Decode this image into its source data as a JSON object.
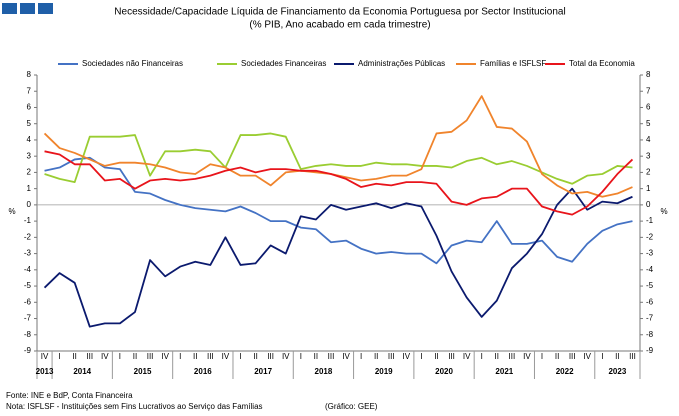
{
  "chart_data": {
    "type": "line",
    "title": "Necessidade/Capacidade Líquida de Financiamento da Economia Portuguesa por Sector Institucional",
    "subtitle": "(% PIB, Ano acabado em cada trimestre)",
    "y_axis_label": "%",
    "groups": [
      {
        "year": "2013",
        "quarters": [
          "IV"
        ]
      },
      {
        "year": "2014",
        "quarters": [
          "I",
          "II",
          "III",
          "IV"
        ]
      },
      {
        "year": "2015",
        "quarters": [
          "I",
          "II",
          "III",
          "IV"
        ]
      },
      {
        "year": "2016",
        "quarters": [
          "I",
          "II",
          "III",
          "IV"
        ]
      },
      {
        "year": "2017",
        "quarters": [
          "I",
          "II",
          "III",
          "IV"
        ]
      },
      {
        "year": "2018",
        "quarters": [
          "I",
          "II",
          "III",
          "IV"
        ]
      },
      {
        "year": "2019",
        "quarters": [
          "I",
          "II",
          "III",
          "IV"
        ]
      },
      {
        "year": "2020",
        "quarters": [
          "I",
          "II",
          "III",
          "IV"
        ]
      },
      {
        "year": "2021",
        "quarters": [
          "I",
          "II",
          "III",
          "IV"
        ]
      },
      {
        "year": "2022",
        "quarters": [
          "I",
          "II",
          "III",
          "IV"
        ]
      },
      {
        "year": "2023",
        "quarters": [
          "I",
          "II",
          "III"
        ]
      }
    ],
    "series": [
      {
        "name": "Sociedades não Financeiras",
        "color": "#4472c4",
        "values": [
          2.1,
          2.3,
          2.8,
          2.9,
          2.3,
          2.2,
          0.8,
          0.7,
          0.3,
          0.0,
          -0.2,
          -0.3,
          -0.4,
          -0.1,
          -0.5,
          -1.0,
          -1.0,
          -1.4,
          -1.5,
          -2.3,
          -2.2,
          -2.7,
          -3.0,
          -2.9,
          -3.0,
          -3.0,
          -3.6,
          -2.5,
          -2.2,
          -2.3,
          -1.0,
          -2.4,
          -2.4,
          -2.2,
          -3.2,
          -3.5,
          -2.4,
          -1.6,
          -1.2,
          -1.0
        ]
      },
      {
        "name": "Sociedades Financeiras",
        "color": "#9acd32",
        "values": [
          1.9,
          1.6,
          1.4,
          4.2,
          4.2,
          4.2,
          4.3,
          1.8,
          3.3,
          3.3,
          3.4,
          3.3,
          2.3,
          4.3,
          4.3,
          4.4,
          4.2,
          2.2,
          2.4,
          2.5,
          2.4,
          2.4,
          2.6,
          2.5,
          2.5,
          2.4,
          2.4,
          2.3,
          2.7,
          2.9,
          2.5,
          2.7,
          2.4,
          2.0,
          1.6,
          1.3,
          1.8,
          1.9,
          2.4,
          2.3
        ]
      },
      {
        "name": "Administrações Públicas",
        "color": "#0b1a6e",
        "values": [
          -5.1,
          -4.2,
          -4.8,
          -7.5,
          -7.3,
          -7.3,
          -6.6,
          -3.4,
          -4.4,
          -3.8,
          -3.5,
          -3.7,
          -2.0,
          -3.7,
          -3.6,
          -2.5,
          -3.0,
          -0.7,
          -0.9,
          0.0,
          -0.3,
          -0.1,
          0.1,
          -0.2,
          0.1,
          -0.1,
          -1.9,
          -4.1,
          -5.7,
          -6.9,
          -5.9,
          -3.9,
          -3.0,
          -1.8,
          0.0,
          1.0,
          -0.3,
          0.2,
          0.1,
          0.5
        ]
      },
      {
        "name": "Famílias e ISFLSF",
        "color": "#f0842c",
        "values": [
          4.4,
          3.5,
          3.2,
          2.8,
          2.4,
          2.6,
          2.6,
          2.5,
          2.3,
          2.0,
          1.9,
          2.5,
          2.3,
          1.8,
          1.8,
          1.2,
          2.0,
          2.1,
          2.0,
          1.9,
          1.7,
          1.5,
          1.6,
          1.8,
          1.8,
          2.2,
          4.4,
          4.5,
          5.2,
          6.7,
          4.8,
          4.7,
          3.9,
          1.9,
          1.2,
          0.7,
          0.8,
          0.5,
          0.7,
          1.1
        ]
      },
      {
        "name": "Total da Economia",
        "color": "#e8141b",
        "values": [
          3.3,
          3.1,
          2.5,
          2.5,
          1.5,
          1.6,
          1.0,
          1.5,
          1.6,
          1.5,
          1.6,
          1.8,
          2.1,
          2.3,
          2.0,
          2.2,
          2.2,
          2.1,
          2.1,
          1.9,
          1.6,
          1.1,
          1.3,
          1.2,
          1.4,
          1.4,
          1.3,
          0.2,
          0.0,
          0.4,
          0.5,
          1.0,
          1.0,
          -0.1,
          -0.4,
          -0.6,
          -0.1,
          0.8,
          1.9,
          2.8
        ]
      }
    ],
    "ylim": [
      -9,
      8
    ],
    "yticks": [
      -9,
      -8,
      -7,
      -6,
      -5,
      -4,
      -3,
      -2,
      -1,
      0,
      1,
      2,
      3,
      4,
      5,
      6,
      7,
      8
    ],
    "legend": "top",
    "footnotes": [
      "Fonte: INE e BdP, Conta Financeira",
      "Nota: ISFLSF - Instituições sem Fins Lucrativos ao Serviço das Famílias"
    ],
    "credit": "(Gráfico: GEE)"
  }
}
